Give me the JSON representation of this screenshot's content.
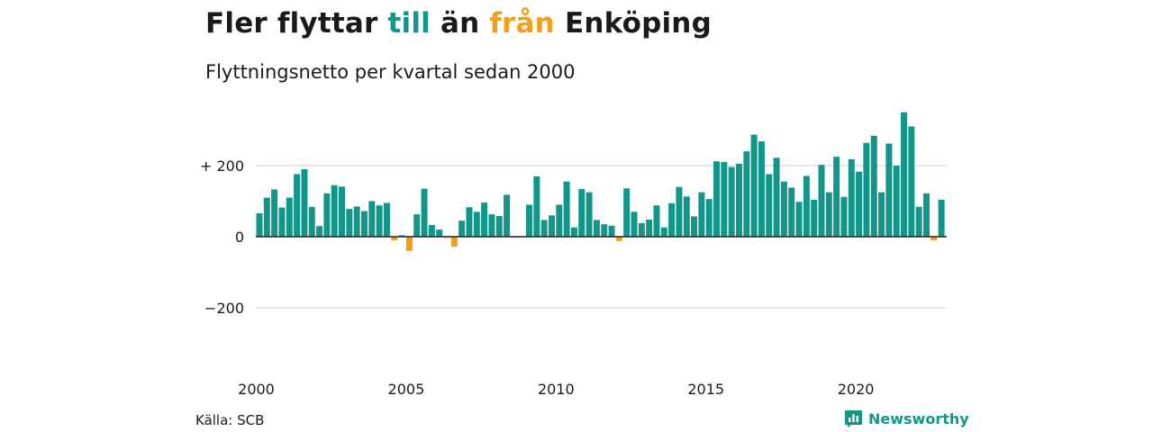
{
  "title": {
    "part1": "Fler flyttar",
    "till": "till",
    "mid": "än",
    "fran": "från",
    "part3": "Enköping"
  },
  "subtitle": "Flyttningsnetto per kvartal sedan 2000",
  "source": "Källa: SCB",
  "brand": {
    "name": "Newsworthy",
    "icon": "newsworthy-logo-icon"
  },
  "colors": {
    "positive": "#13968a",
    "negative": "#f29f1c",
    "grid": "#dddddd",
    "zero": "#222222",
    "text": "#1a1a1a"
  },
  "chart_data": {
    "type": "bar",
    "title": "Fler flyttar till än från Enköping",
    "subtitle": "Flyttningsnetto per kvartal sedan 2000",
    "x_start_year": 2000,
    "periods_per_year": 4,
    "x_ticks": [
      "2000",
      "2005",
      "2010",
      "2015",
      "2020"
    ],
    "y_ticks": [
      {
        "value": 200,
        "label": "+ 200"
      },
      {
        "value": 0,
        "label": "0"
      },
      {
        "value": -200,
        "label": "−200"
      }
    ],
    "ylim": [
      -230,
      350
    ],
    "grid": true,
    "values": [
      66,
      110,
      133,
      82,
      110,
      176,
      190,
      84,
      30,
      122,
      145,
      141,
      78,
      85,
      72,
      100,
      88,
      95,
      -10,
      4,
      -40,
      63,
      135,
      33,
      20,
      -3,
      -28,
      45,
      83,
      70,
      96,
      63,
      58,
      118,
      -3,
      -2,
      90,
      170,
      47,
      60,
      90,
      155,
      26,
      134,
      125,
      47,
      35,
      31,
      -12,
      136,
      70,
      38,
      48,
      88,
      26,
      94,
      140,
      113,
      57,
      125,
      106,
      212,
      210,
      196,
      205,
      240,
      287,
      268,
      176,
      222,
      155,
      138,
      98,
      171,
      104,
      202,
      125,
      225,
      112,
      218,
      183,
      264,
      284,
      125,
      262,
      200,
      350,
      310,
      84,
      122,
      -10,
      104
    ]
  }
}
